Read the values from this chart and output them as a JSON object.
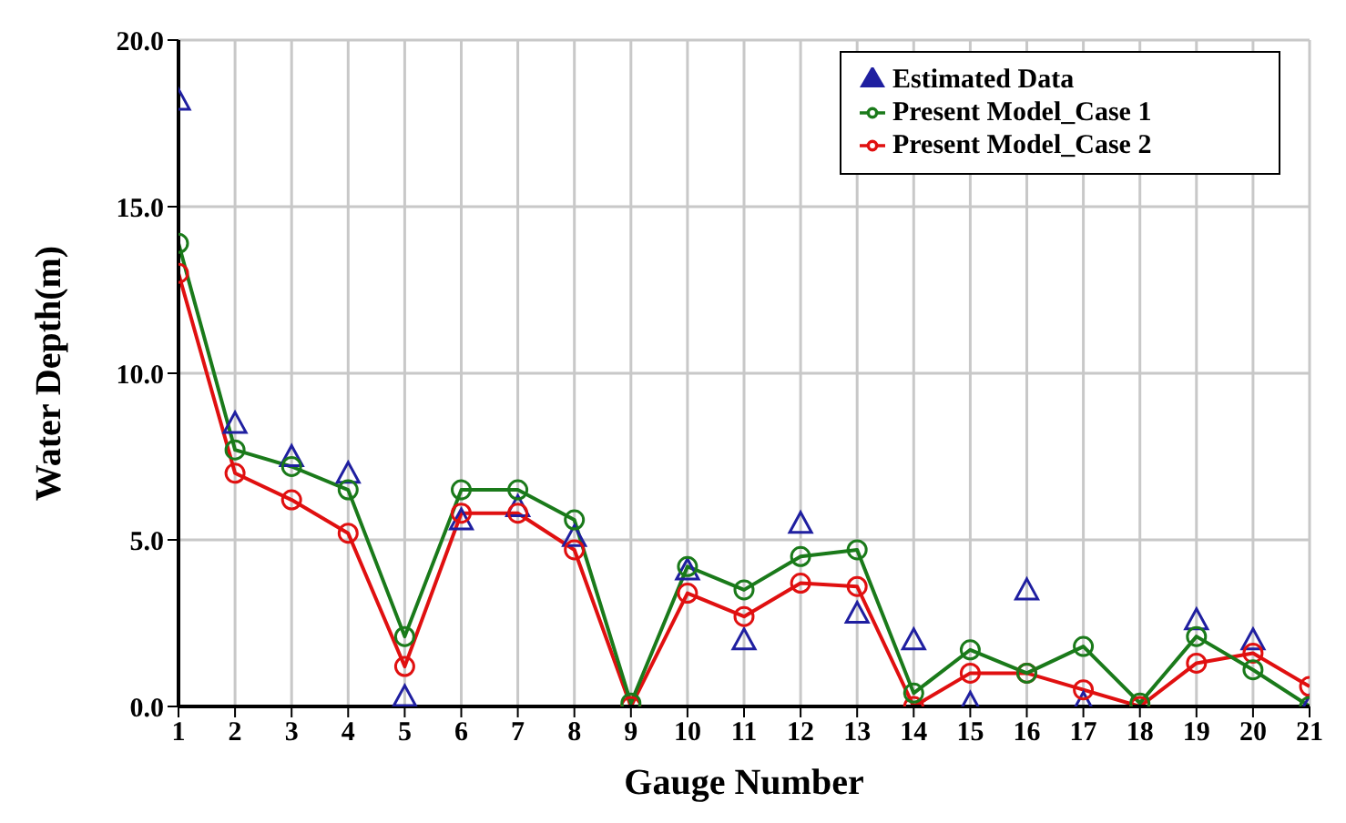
{
  "chart_data": {
    "type": "line",
    "xlabel": "Gauge Number",
    "ylabel": "Water Depth(m)",
    "x": [
      1,
      2,
      3,
      4,
      5,
      6,
      7,
      8,
      9,
      10,
      11,
      12,
      13,
      14,
      15,
      16,
      17,
      18,
      19,
      20,
      21
    ],
    "xlim": [
      1,
      21
    ],
    "xticks": [
      1,
      2,
      3,
      4,
      5,
      6,
      7,
      8,
      9,
      10,
      11,
      12,
      13,
      14,
      15,
      16,
      17,
      18,
      19,
      20,
      21
    ],
    "ylim": [
      0,
      20
    ],
    "yticks": [
      {
        "value": 0,
        "label": "0.0"
      },
      {
        "value": 5,
        "label": "5.0"
      },
      {
        "value": 10,
        "label": "10.0"
      },
      {
        "value": 15,
        "label": "15.0"
      },
      {
        "value": 20,
        "label": "20.0"
      }
    ],
    "grid": true,
    "legend": "top right",
    "series": [
      {
        "name": "Estimated Data",
        "type": "scatter",
        "marker": "triangle",
        "color": "#1f1fa0",
        "values": [
          18.2,
          8.5,
          7.5,
          7.0,
          0.3,
          5.6,
          6.0,
          5.1,
          null,
          4.1,
          2.0,
          5.5,
          2.8,
          2.0,
          0.1,
          3.5,
          0.1,
          null,
          2.6,
          2.0,
          0.0
        ]
      },
      {
        "name": "Present Model_Case 1",
        "type": "line",
        "marker": "circle",
        "color": "#1a7a1a",
        "values": [
          13.9,
          7.7,
          7.2,
          6.5,
          2.1,
          6.5,
          6.5,
          5.6,
          0.1,
          4.2,
          3.5,
          4.5,
          4.7,
          0.4,
          1.7,
          1.0,
          1.8,
          0.1,
          2.1,
          1.1,
          0.0
        ]
      },
      {
        "name": "Present Model_Case 2",
        "type": "line",
        "marker": "circle",
        "color": "#e01010",
        "values": [
          13.0,
          7.0,
          6.2,
          5.2,
          1.2,
          5.8,
          5.8,
          4.7,
          0.0,
          3.4,
          2.7,
          3.7,
          3.6,
          0.0,
          1.0,
          1.0,
          0.5,
          0.0,
          1.3,
          1.6,
          0.6
        ]
      }
    ]
  }
}
